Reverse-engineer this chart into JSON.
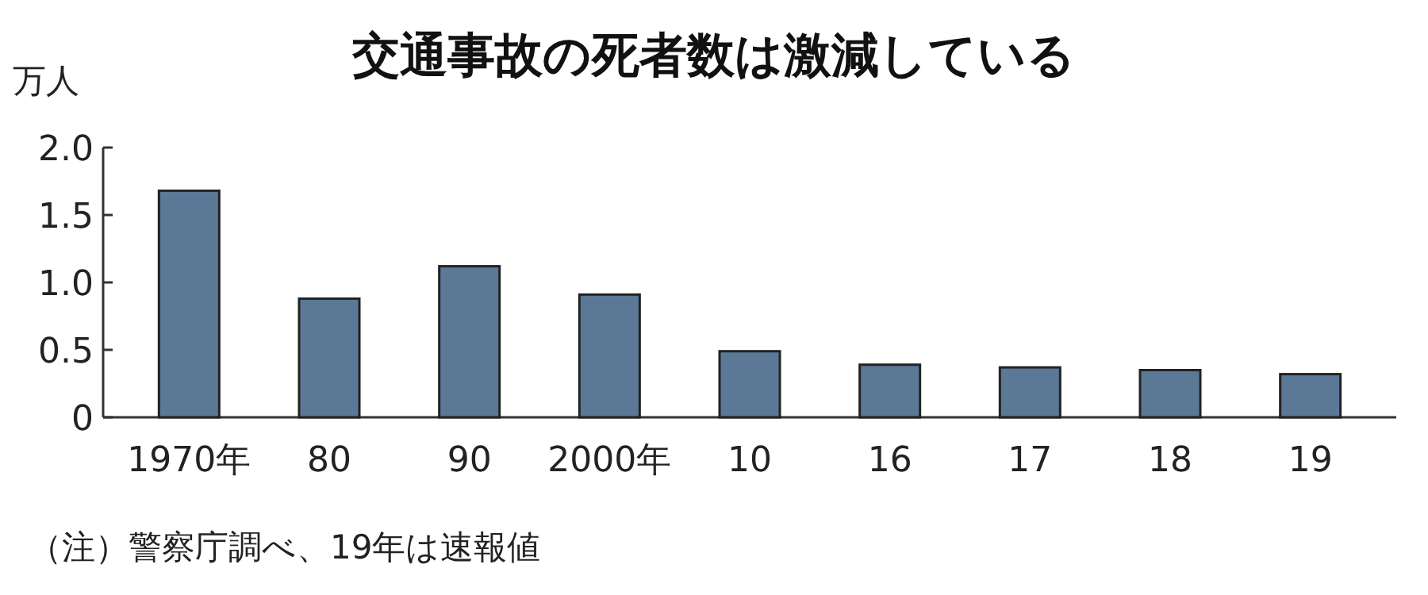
{
  "chart_data": {
    "type": "bar",
    "title": "交通事故の死者数は激減している",
    "ylabel": "万人",
    "categories": [
      "1970年",
      "80",
      "90",
      "2000年",
      "10",
      "16",
      "17",
      "18",
      "19"
    ],
    "values": [
      1.68,
      0.88,
      1.12,
      0.91,
      0.49,
      0.39,
      0.37,
      0.35,
      0.32
    ],
    "color": "#5b7896",
    "ylim": [
      0,
      2.0
    ],
    "yticks": [
      0,
      {
        "value": 0.5,
        "label": "0.5"
      },
      {
        "value": 1.0,
        "label": "1.0"
      },
      {
        "value": 1.5,
        "label": "1.5"
      },
      {
        "value": 2.0,
        "label": "2.0"
      }
    ],
    "annotations": [
      "（注）警察庁調べ、19年は速報値"
    ]
  }
}
